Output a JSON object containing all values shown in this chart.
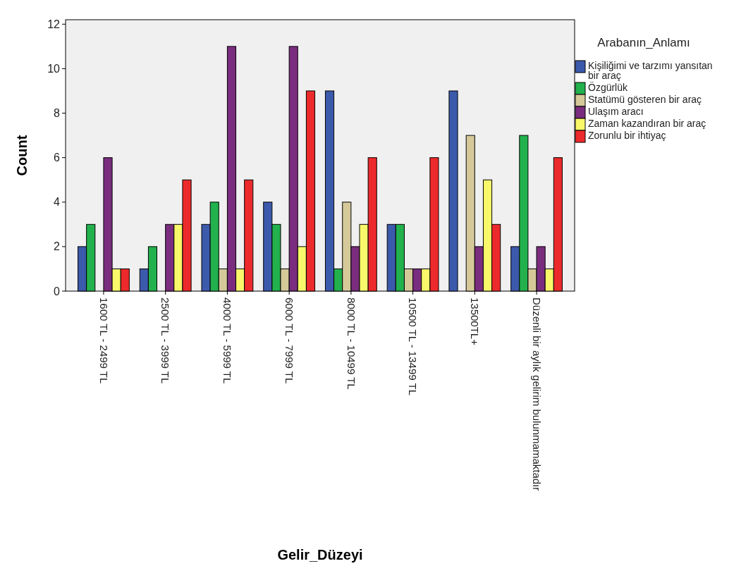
{
  "chart_data": {
    "type": "bar",
    "xlabel": "Gelir_Düzeyi",
    "ylabel": "Count",
    "legend_title": "Arabanın_Anlamı",
    "legend": "right",
    "grid": false,
    "categories": [
      "1600 TL - 2499 TL",
      "2500 TL - 3999 TL",
      "4000 TL - 5999 TL",
      "6000 TL - 7999 TL",
      "8000 TL - 10499 TL",
      "10500 TL - 13499 TL",
      "13500TL+",
      "Düzenli bir aylık gelirim bulunmamaktadır"
    ],
    "ylim": [
      0,
      12.2
    ],
    "yticks": [
      0,
      2,
      4,
      6,
      8,
      10,
      12
    ],
    "series": [
      {
        "name": "Kişiliğimi ve tarzımı yansıtan bir araç",
        "color": "#3c5aab",
        "values": [
          2,
          1,
          3,
          4,
          9,
          3,
          9,
          2
        ]
      },
      {
        "name": "Özgürlük",
        "color": "#22b14c",
        "values": [
          3,
          2,
          4,
          3,
          1,
          3,
          null,
          7
        ]
      },
      {
        "name": "Statümü gösteren bir araç",
        "color": "#d5c99a",
        "values": [
          null,
          null,
          1,
          1,
          4,
          1,
          7,
          1
        ]
      },
      {
        "name": "Ulaşım aracı",
        "color": "#7a2d7e",
        "values": [
          6,
          3,
          11,
          11,
          2,
          1,
          2,
          2
        ]
      },
      {
        "name": "Zaman kazandıran bir araç",
        "color": "#f9f86a",
        "values": [
          1,
          3,
          1,
          2,
          3,
          1,
          5,
          1
        ]
      },
      {
        "name": "Zorunlu bir ihtiyaç",
        "color": "#ec2a2b",
        "values": [
          1,
          5,
          5,
          9,
          6,
          6,
          3,
          6
        ]
      }
    ]
  }
}
